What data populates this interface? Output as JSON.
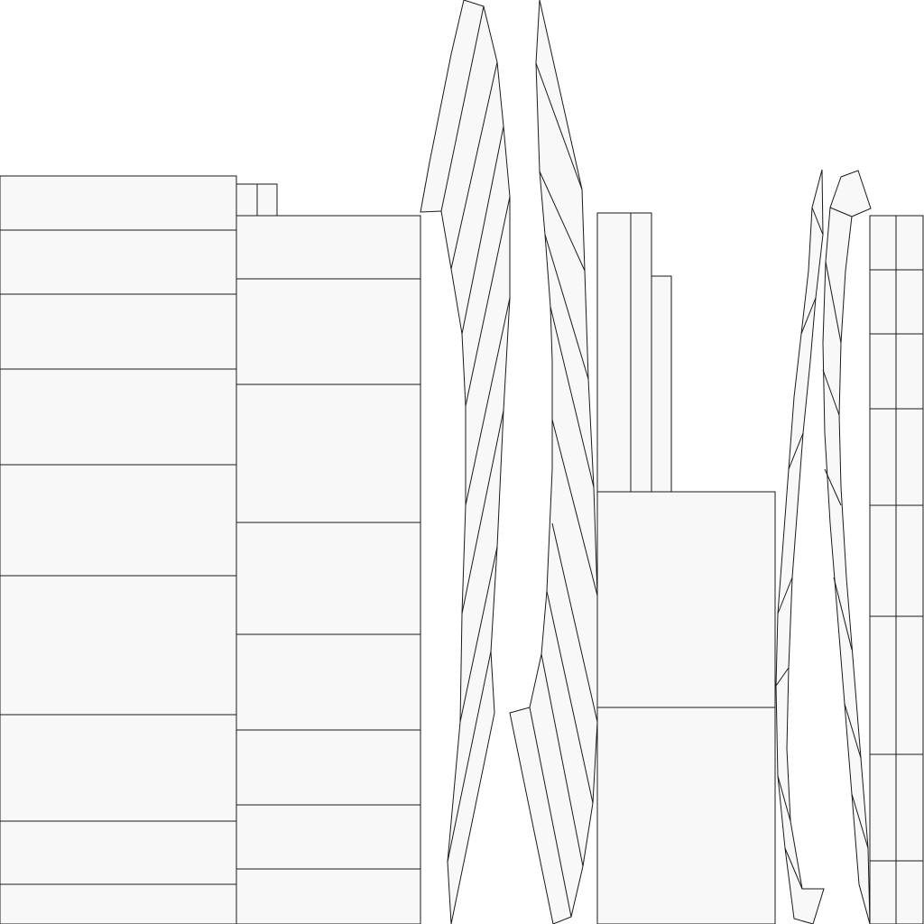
{
  "colors": {
    "background": "#ffffff",
    "panel_fill": "#f8f8f8",
    "stroke": "#1a1a1a"
  },
  "islands": [
    {
      "name": "uv-island-wide-left"
    },
    {
      "name": "uv-island-small-tab"
    },
    {
      "name": "uv-island-wide-middle"
    },
    {
      "name": "uv-island-twisted-strip-1"
    },
    {
      "name": "uv-island-twisted-strip-2"
    },
    {
      "name": "uv-island-stepped-column"
    },
    {
      "name": "uv-island-lower-block"
    },
    {
      "name": "uv-island-thin-curved-strip"
    },
    {
      "name": "uv-island-thin-twisted-strip"
    },
    {
      "name": "uv-island-narrow-right-column"
    }
  ]
}
